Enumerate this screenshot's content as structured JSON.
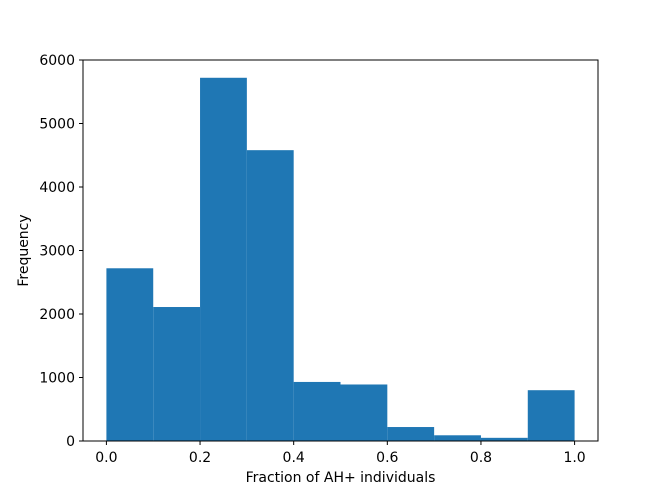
{
  "chart_data": {
    "type": "bar",
    "title": "",
    "xlabel": "Fraction of AH+ individuals",
    "ylabel": "Frequency",
    "bin_edges": [
      0.0,
      0.1,
      0.2,
      0.3,
      0.4,
      0.5,
      0.6,
      0.7,
      0.8,
      0.9,
      1.0
    ],
    "values": [
      2720,
      2110,
      5720,
      4580,
      930,
      890,
      220,
      90,
      50,
      800
    ],
    "xlim": [
      -0.05,
      1.05
    ],
    "ylim": [
      0,
      6000
    ],
    "xticks": [
      0.0,
      0.2,
      0.4,
      0.6,
      0.8,
      1.0
    ],
    "xtick_labels": [
      "0.0",
      "0.2",
      "0.4",
      "0.6",
      "0.8",
      "1.0"
    ],
    "yticks": [
      0,
      1000,
      2000,
      3000,
      4000,
      5000,
      6000
    ],
    "ytick_labels": [
      "0",
      "1000",
      "2000",
      "3000",
      "4000",
      "5000",
      "6000"
    ],
    "bar_color": "#1f77b4",
    "grid": false,
    "legend": "none"
  }
}
